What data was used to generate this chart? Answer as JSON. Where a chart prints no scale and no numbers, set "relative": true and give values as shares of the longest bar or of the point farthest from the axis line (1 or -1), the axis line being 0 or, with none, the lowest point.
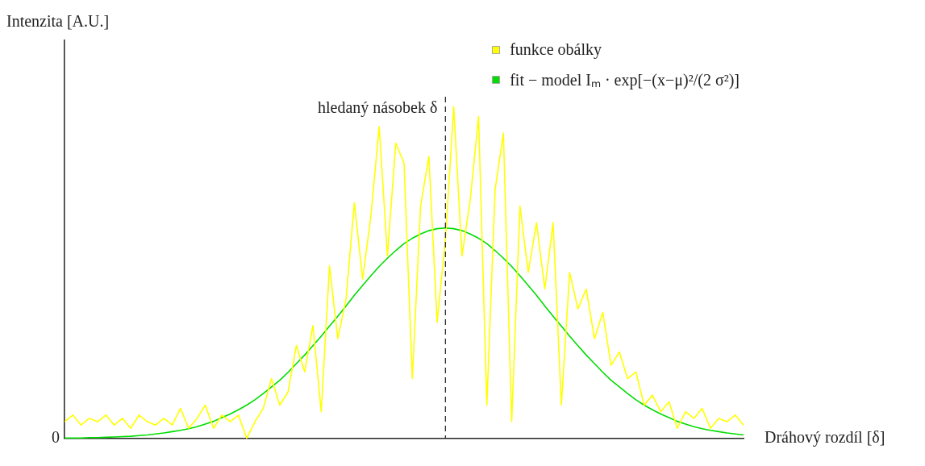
{
  "chart_data": {
    "type": "line",
    "relative": true,
    "xlabel": "Dráhový rozdíl [δ]",
    "ylabel": "Intenzita [A.U.]",
    "categories": [
      null,
      null,
      null,
      null,
      null,
      null,
      null,
      null,
      null,
      null,
      null,
      null,
      null,
      null,
      null,
      null,
      null,
      null,
      null,
      null,
      null,
      null,
      null,
      null,
      null,
      null,
      null,
      null,
      null,
      null,
      null,
      null,
      null,
      null,
      null,
      null,
      null,
      null,
      null,
      null,
      null,
      null,
      null,
      null,
      null,
      null,
      null,
      null,
      null,
      null,
      null,
      null,
      null,
      null,
      null,
      null,
      null,
      null,
      null,
      null,
      null,
      null,
      null,
      null,
      null,
      null,
      null,
      null,
      null,
      null,
      null,
      null,
      null,
      null,
      null,
      null,
      null,
      null,
      null,
      null,
      null,
      null,
      null
    ],
    "series": [
      {
        "name": "funkce obálky",
        "color": "#ffff00",
        "values": [
          0.05,
          0.07,
          0.04,
          0.06,
          0.05,
          0.07,
          0.04,
          0.06,
          0.03,
          0.07,
          0.05,
          0.04,
          0.06,
          0.04,
          0.09,
          0.03,
          0.06,
          0.1,
          0.03,
          0.07,
          0.05,
          0.07,
          0.0,
          0.05,
          0.09,
          0.18,
          0.1,
          0.14,
          0.28,
          0.2,
          0.34,
          0.08,
          0.52,
          0.3,
          0.42,
          0.71,
          0.48,
          0.67,
          0.94,
          0.55,
          0.89,
          0.83,
          0.18,
          0.7,
          0.85,
          0.35,
          0.6,
          1.0,
          0.55,
          0.72,
          0.97,
          0.1,
          0.75,
          0.92,
          0.05,
          0.7,
          0.5,
          0.65,
          0.45,
          0.65,
          0.1,
          0.5,
          0.39,
          0.45,
          0.3,
          0.38,
          0.22,
          0.26,
          0.18,
          0.2,
          0.1,
          0.13,
          0.08,
          0.11,
          0.03,
          0.08,
          0.06,
          0.09,
          0.03,
          0.06,
          0.05,
          0.07,
          0.04
        ]
      },
      {
        "name": "fit − model Iₘ · exp[−(x−μ)²/(2 σ²)]",
        "color": "#00dd00",
        "values": [
          0.001,
          0.001,
          0.001,
          0.002,
          0.002,
          0.003,
          0.004,
          0.005,
          0.006,
          0.008,
          0.01,
          0.013,
          0.016,
          0.02,
          0.024,
          0.029,
          0.035,
          0.043,
          0.051,
          0.062,
          0.073,
          0.086,
          0.1,
          0.116,
          0.135,
          0.155,
          0.175,
          0.199,
          0.225,
          0.251,
          0.279,
          0.308,
          0.338,
          0.368,
          0.399,
          0.431,
          0.461,
          0.49,
          0.518,
          0.543,
          0.566,
          0.587,
          0.603,
          0.616,
          0.626,
          0.632,
          0.634,
          0.632,
          0.626,
          0.616,
          0.603,
          0.587,
          0.566,
          0.543,
          0.518,
          0.49,
          0.461,
          0.431,
          0.399,
          0.368,
          0.338,
          0.308,
          0.279,
          0.251,
          0.225,
          0.199,
          0.175,
          0.155,
          0.135,
          0.116,
          0.1,
          0.086,
          0.073,
          0.062,
          0.051,
          0.043,
          0.035,
          0.029,
          0.024,
          0.02,
          0.016,
          0.013,
          0.01
        ]
      }
    ],
    "annotations": [
      "hledaný násobek δ",
      "0"
    ],
    "legend": "top right",
    "marker": "none",
    "line_style": "solid",
    "grid": false
  }
}
